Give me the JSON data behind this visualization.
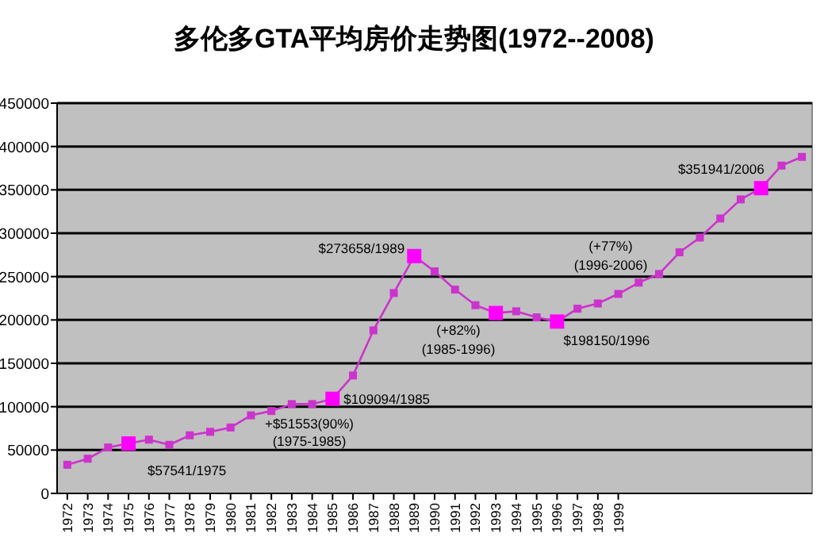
{
  "chart_data": {
    "type": "line",
    "title": "多伦多GTA平均房价走势图(1972--2008)",
    "xlim": [
      1971.5,
      2008.5
    ],
    "xticks": [
      1972,
      1973,
      1974,
      1975,
      1976,
      1977,
      1978,
      1979,
      1980,
      1981,
      1982,
      1983,
      1984,
      1985,
      1986,
      1987,
      1988,
      1989,
      1990,
      1991,
      1992,
      1993,
      1994,
      1995,
      1996,
      1997,
      1998,
      1999
    ],
    "ylim": [
      0,
      450000
    ],
    "yticks": [
      0,
      50000,
      100000,
      150000,
      200000,
      250000,
      300000,
      350000,
      400000,
      450000
    ],
    "grid": "y",
    "marker": "square",
    "series": [
      {
        "color": "#cc33cc",
        "x": [
          1972,
          1973,
          1974,
          1975,
          1976,
          1977,
          1978,
          1979,
          1980,
          1981,
          1982,
          1983,
          1984,
          1985,
          1986,
          1987,
          1988,
          1989,
          1990,
          1991,
          1992,
          1993,
          1994,
          1995,
          1996,
          1997,
          1998,
          1999,
          2000,
          2001,
          2002,
          2003,
          2004,
          2005,
          2006,
          2007,
          2008
        ],
        "values": [
          33000,
          40000,
          53000,
          57541,
          62000,
          56000,
          67000,
          71000,
          76000,
          90000,
          95000,
          103000,
          103000,
          109094,
          136000,
          188000,
          231000,
          273658,
          256000,
          235000,
          217000,
          208000,
          210000,
          203000,
          198150,
          213000,
          219000,
          230000,
          243000,
          253000,
          278000,
          295000,
          317000,
          339000,
          351941,
          378000,
          388000
        ]
      },
      {
        "type": "scatter",
        "color": "#ff00ff",
        "x": [
          1975,
          1985,
          1989,
          1993,
          1996,
          2006
        ],
        "values": [
          57541,
          109094,
          273658,
          208000,
          198150,
          351941
        ]
      }
    ],
    "annotations": [
      {
        "text": "$57541/1975",
        "x": 1975,
        "y": 57541
      },
      {
        "text": "$109094/1985",
        "x": 1985,
        "y": 109094
      },
      {
        "text": "$273658/1989",
        "x": 1989,
        "y": 273658
      },
      {
        "text": "$198150/1996",
        "x": 1996,
        "y": 198150
      },
      {
        "text": "$351941/2006",
        "x": 2006,
        "y": 351941
      },
      "+$51553(90%)",
      "(1975-1985)",
      "(+82%)",
      "(1985-1996)",
      "(+77%)",
      "(1996-2006)"
    ]
  }
}
